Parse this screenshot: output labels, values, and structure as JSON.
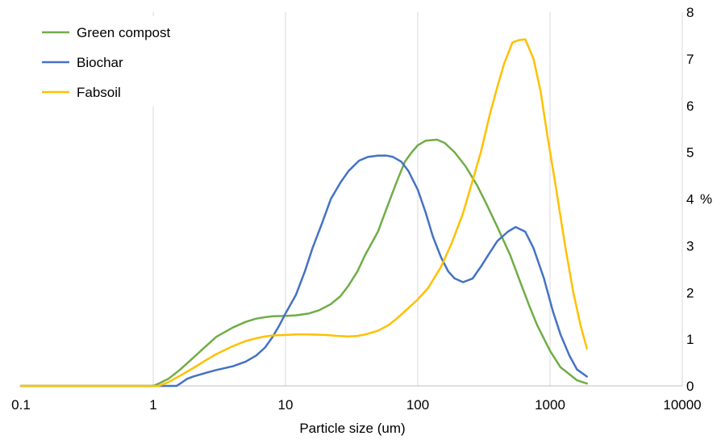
{
  "chart_data": {
    "type": "line",
    "xlabel": "Particle size (um)",
    "ylabel": "%",
    "x_scale": "log",
    "xlim": [
      0.1,
      10000
    ],
    "ylim": [
      0,
      8
    ],
    "x_ticks": [
      "0.1",
      "1",
      "10",
      "100",
      "1000",
      "10000"
    ],
    "y_ticks": [
      "0",
      "1",
      "2",
      "3",
      "4",
      "5",
      "6",
      "7",
      "8"
    ],
    "grid": "vertical",
    "legend_position": "top-left",
    "series": [
      {
        "name": "Green compost",
        "color": "#70ad47",
        "points": [
          [
            0.1,
            0
          ],
          [
            1,
            0
          ],
          [
            1.1,
            0.05
          ],
          [
            1.3,
            0.15
          ],
          [
            1.6,
            0.35
          ],
          [
            2,
            0.6
          ],
          [
            2.5,
            0.85
          ],
          [
            3,
            1.05
          ],
          [
            4,
            1.25
          ],
          [
            5,
            1.37
          ],
          [
            6,
            1.44
          ],
          [
            7,
            1.47
          ],
          [
            8,
            1.49
          ],
          [
            10,
            1.5
          ],
          [
            12,
            1.51
          ],
          [
            15,
            1.55
          ],
          [
            18,
            1.62
          ],
          [
            22,
            1.75
          ],
          [
            26,
            1.92
          ],
          [
            30,
            2.15
          ],
          [
            35,
            2.45
          ],
          [
            40,
            2.8
          ],
          [
            50,
            3.3
          ],
          [
            60,
            3.9
          ],
          [
            70,
            4.4
          ],
          [
            80,
            4.8
          ],
          [
            90,
            5.0
          ],
          [
            100,
            5.15
          ],
          [
            115,
            5.25
          ],
          [
            140,
            5.27
          ],
          [
            160,
            5.2
          ],
          [
            190,
            5.0
          ],
          [
            230,
            4.7
          ],
          [
            280,
            4.3
          ],
          [
            330,
            3.9
          ],
          [
            400,
            3.4
          ],
          [
            500,
            2.8
          ],
          [
            600,
            2.2
          ],
          [
            700,
            1.7
          ],
          [
            800,
            1.3
          ],
          [
            1000,
            0.75
          ],
          [
            1200,
            0.4
          ],
          [
            1400,
            0.25
          ],
          [
            1600,
            0.12
          ],
          [
            1900,
            0.05
          ]
        ]
      },
      {
        "name": "Biochar",
        "color": "#4472c4",
        "points": [
          [
            0.1,
            0
          ],
          [
            1.5,
            0
          ],
          [
            1.6,
            0.05
          ],
          [
            1.8,
            0.15
          ],
          [
            2,
            0.2
          ],
          [
            2.5,
            0.28
          ],
          [
            3,
            0.34
          ],
          [
            4,
            0.42
          ],
          [
            5,
            0.52
          ],
          [
            6,
            0.65
          ],
          [
            7,
            0.82
          ],
          [
            8,
            1.05
          ],
          [
            9,
            1.3
          ],
          [
            10,
            1.55
          ],
          [
            12,
            1.95
          ],
          [
            14,
            2.45
          ],
          [
            16,
            2.95
          ],
          [
            19,
            3.5
          ],
          [
            22,
            4.0
          ],
          [
            26,
            4.35
          ],
          [
            30,
            4.6
          ],
          [
            36,
            4.82
          ],
          [
            42,
            4.9
          ],
          [
            50,
            4.93
          ],
          [
            58,
            4.93
          ],
          [
            65,
            4.9
          ],
          [
            75,
            4.8
          ],
          [
            85,
            4.6
          ],
          [
            100,
            4.2
          ],
          [
            115,
            3.7
          ],
          [
            130,
            3.2
          ],
          [
            150,
            2.75
          ],
          [
            170,
            2.45
          ],
          [
            190,
            2.3
          ],
          [
            220,
            2.22
          ],
          [
            260,
            2.3
          ],
          [
            300,
            2.55
          ],
          [
            350,
            2.85
          ],
          [
            400,
            3.1
          ],
          [
            480,
            3.3
          ],
          [
            550,
            3.4
          ],
          [
            650,
            3.3
          ],
          [
            750,
            2.95
          ],
          [
            900,
            2.3
          ],
          [
            1050,
            1.6
          ],
          [
            1200,
            1.1
          ],
          [
            1400,
            0.65
          ],
          [
            1600,
            0.35
          ],
          [
            1900,
            0.2
          ]
        ]
      },
      {
        "name": "Fabsoil",
        "color": "#ffc000",
        "points": [
          [
            0.1,
            0
          ],
          [
            1.1,
            0
          ],
          [
            1.3,
            0.08
          ],
          [
            1.6,
            0.22
          ],
          [
            2,
            0.38
          ],
          [
            2.5,
            0.55
          ],
          [
            3,
            0.68
          ],
          [
            4,
            0.85
          ],
          [
            5,
            0.96
          ],
          [
            6,
            1.02
          ],
          [
            7,
            1.06
          ],
          [
            8,
            1.08
          ],
          [
            10,
            1.09
          ],
          [
            12,
            1.1
          ],
          [
            15,
            1.1
          ],
          [
            20,
            1.09
          ],
          [
            25,
            1.07
          ],
          [
            30,
            1.06
          ],
          [
            35,
            1.07
          ],
          [
            40,
            1.1
          ],
          [
            50,
            1.18
          ],
          [
            60,
            1.3
          ],
          [
            70,
            1.45
          ],
          [
            80,
            1.6
          ],
          [
            100,
            1.85
          ],
          [
            120,
            2.1
          ],
          [
            150,
            2.55
          ],
          [
            180,
            3.05
          ],
          [
            220,
            3.7
          ],
          [
            260,
            4.4
          ],
          [
            300,
            5.0
          ],
          [
            350,
            5.8
          ],
          [
            400,
            6.4
          ],
          [
            450,
            6.9
          ],
          [
            520,
            7.35
          ],
          [
            580,
            7.4
          ],
          [
            650,
            7.42
          ],
          [
            750,
            7.0
          ],
          [
            850,
            6.3
          ],
          [
            950,
            5.4
          ],
          [
            1100,
            4.3
          ],
          [
            1300,
            3.0
          ],
          [
            1500,
            2.0
          ],
          [
            1700,
            1.3
          ],
          [
            1900,
            0.8
          ]
        ]
      }
    ]
  }
}
